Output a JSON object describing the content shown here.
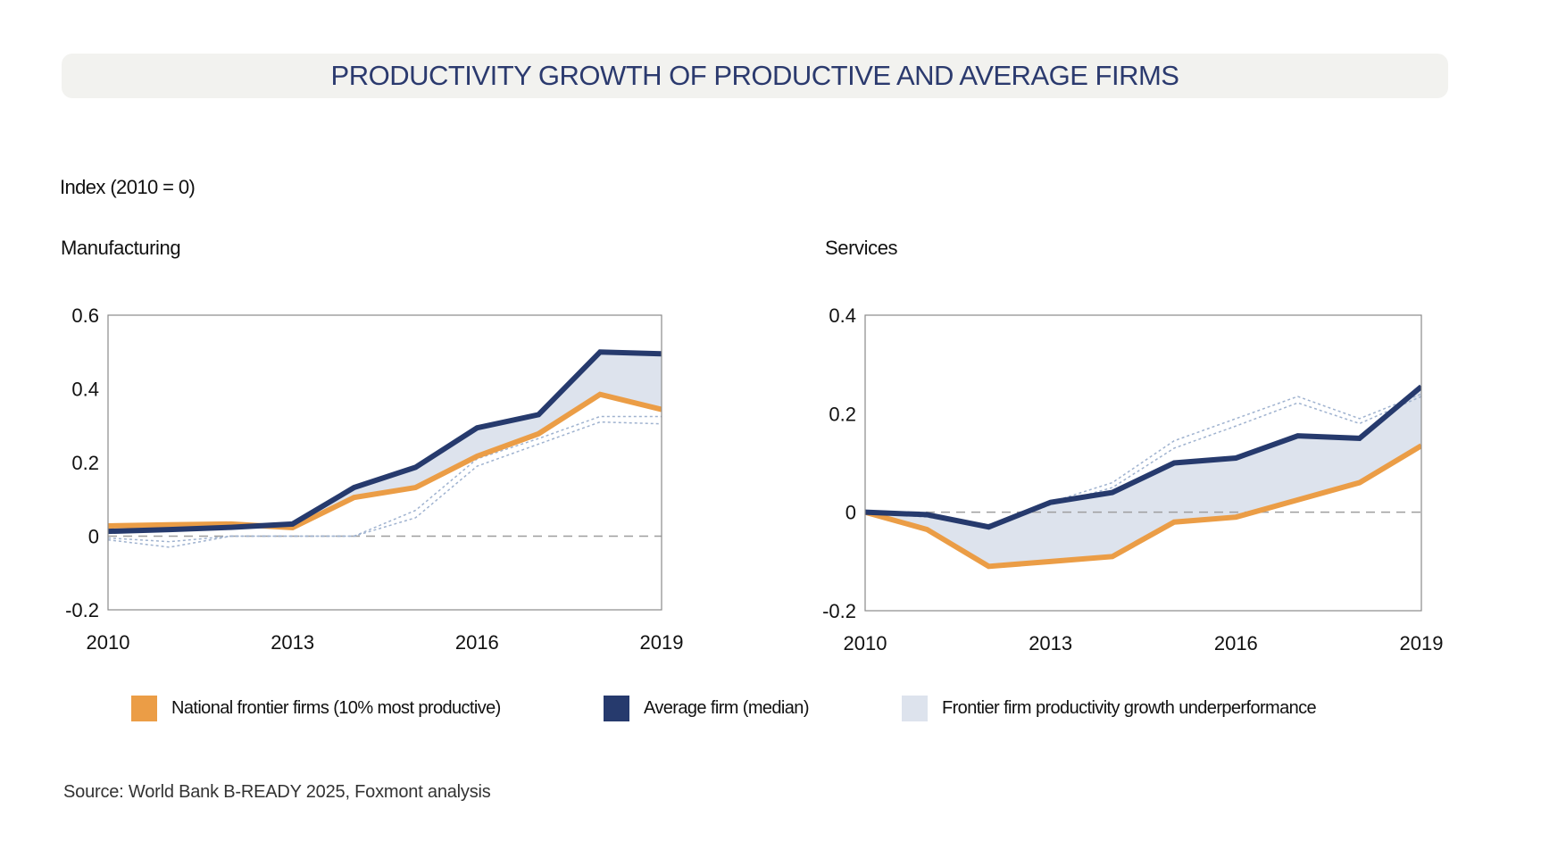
{
  "header": {
    "title": "PRODUCTIVITY GROWTH OF PRODUCTIVE AND AVERAGE FIRMS",
    "unit_label": "Index (2010 = 0)"
  },
  "colors": {
    "frontier": "#eb9d46",
    "average": "#263a6d",
    "gap_fill": "#dde3ed",
    "title_bg": "#f2f2ef",
    "title_text": "#2b3a6e",
    "zero_line": "#9e9e9e",
    "reference_dotted": "#9fb2cf"
  },
  "legend": [
    {
      "key": "frontier",
      "label": "National frontier firms (10% most productive)"
    },
    {
      "key": "average",
      "label": "Average firm (median)"
    },
    {
      "key": "gap_fill",
      "label": "Frontier firm productivity growth underperformance"
    }
  ],
  "source": "Source: World Bank B-READY 2025, Foxmont analysis",
  "chart_data": [
    {
      "type": "line",
      "title": "Manufacturing",
      "xlabel": "",
      "ylabel": "Index (2010 = 0)",
      "x": [
        2010,
        2011,
        2012,
        2013,
        2014,
        2015,
        2016,
        2017,
        2018,
        2019
      ],
      "xticks": [
        "2010",
        "2013",
        "2016",
        "2019"
      ],
      "xtick_values": [
        2010,
        2013,
        2016,
        2019
      ],
      "yticks": [
        "-0.2",
        "0",
        "0.2",
        "0.4",
        "0.6"
      ],
      "ytick_values": [
        -0.2,
        0,
        0.2,
        0.4,
        0.6
      ],
      "ylim": [
        -0.2,
        0.6
      ],
      "xlim": [
        2010,
        2019
      ],
      "grid": false,
      "zero_reference": "dashed",
      "series": [
        {
          "name": "National frontier firms (10% most productive)",
          "key": "frontier",
          "values": [
            0.028,
            0.031,
            0.033,
            0.023,
            0.105,
            0.132,
            0.217,
            0.278,
            0.385,
            0.344
          ]
        },
        {
          "name": "Average firm (median)",
          "key": "average",
          "values": [
            0.013,
            0.018,
            0.024,
            0.033,
            0.132,
            0.187,
            0.294,
            0.33,
            0.5,
            0.495
          ]
        },
        {
          "name": "Reference A",
          "key": "reference_dotted",
          "style": "dotted",
          "values": [
            -0.005,
            -0.015,
            0.0,
            0.0,
            0.0,
            0.07,
            0.21,
            0.265,
            0.325,
            0.325
          ]
        },
        {
          "name": "Reference B",
          "key": "reference_dotted",
          "style": "dotted",
          "values": [
            -0.01,
            -0.03,
            0.0,
            0.0,
            0.0,
            0.05,
            0.19,
            0.25,
            0.31,
            0.305
          ]
        }
      ],
      "shaded_area": {
        "between": [
          "average",
          "frontier"
        ],
        "label": "Frontier firm productivity growth underperformance"
      }
    },
    {
      "type": "line",
      "title": "Services",
      "xlabel": "",
      "ylabel": "Index (2010 = 0)",
      "x": [
        2010,
        2011,
        2012,
        2013,
        2014,
        2015,
        2016,
        2017,
        2018,
        2019
      ],
      "xticks": [
        "2010",
        "2013",
        "2016",
        "2019"
      ],
      "xtick_values": [
        2010,
        2013,
        2016,
        2019
      ],
      "yticks": [
        "-0.2",
        "0",
        "0.2",
        "0.4"
      ],
      "ytick_values": [
        -0.2,
        0,
        0.2,
        0.4
      ],
      "ylim": [
        -0.2,
        0.4
      ],
      "xlim": [
        2010,
        2019
      ],
      "grid": false,
      "zero_reference": "dashed",
      "series": [
        {
          "name": "National frontier firms (10% most productive)",
          "key": "frontier",
          "values": [
            0.0,
            -0.035,
            -0.11,
            -0.1,
            -0.09,
            -0.02,
            -0.01,
            0.025,
            0.06,
            0.135
          ]
        },
        {
          "name": "Average firm (median)",
          "key": "average",
          "values": [
            0.0,
            -0.005,
            -0.03,
            0.02,
            0.04,
            0.1,
            0.11,
            0.155,
            0.15,
            0.255
          ]
        },
        {
          "name": "Reference A",
          "key": "reference_dotted",
          "style": "dotted",
          "values": [
            0.0,
            -0.01,
            -0.025,
            0.02,
            0.06,
            0.145,
            0.19,
            0.235,
            0.19,
            0.24
          ]
        },
        {
          "name": "Reference B",
          "key": "reference_dotted",
          "style": "dotted",
          "values": [
            0.0,
            -0.01,
            -0.03,
            0.015,
            0.05,
            0.13,
            0.175,
            0.222,
            0.18,
            0.235
          ]
        }
      ],
      "shaded_area": {
        "between": [
          "average",
          "frontier"
        ],
        "label": "Frontier firm productivity growth underperformance"
      }
    }
  ]
}
